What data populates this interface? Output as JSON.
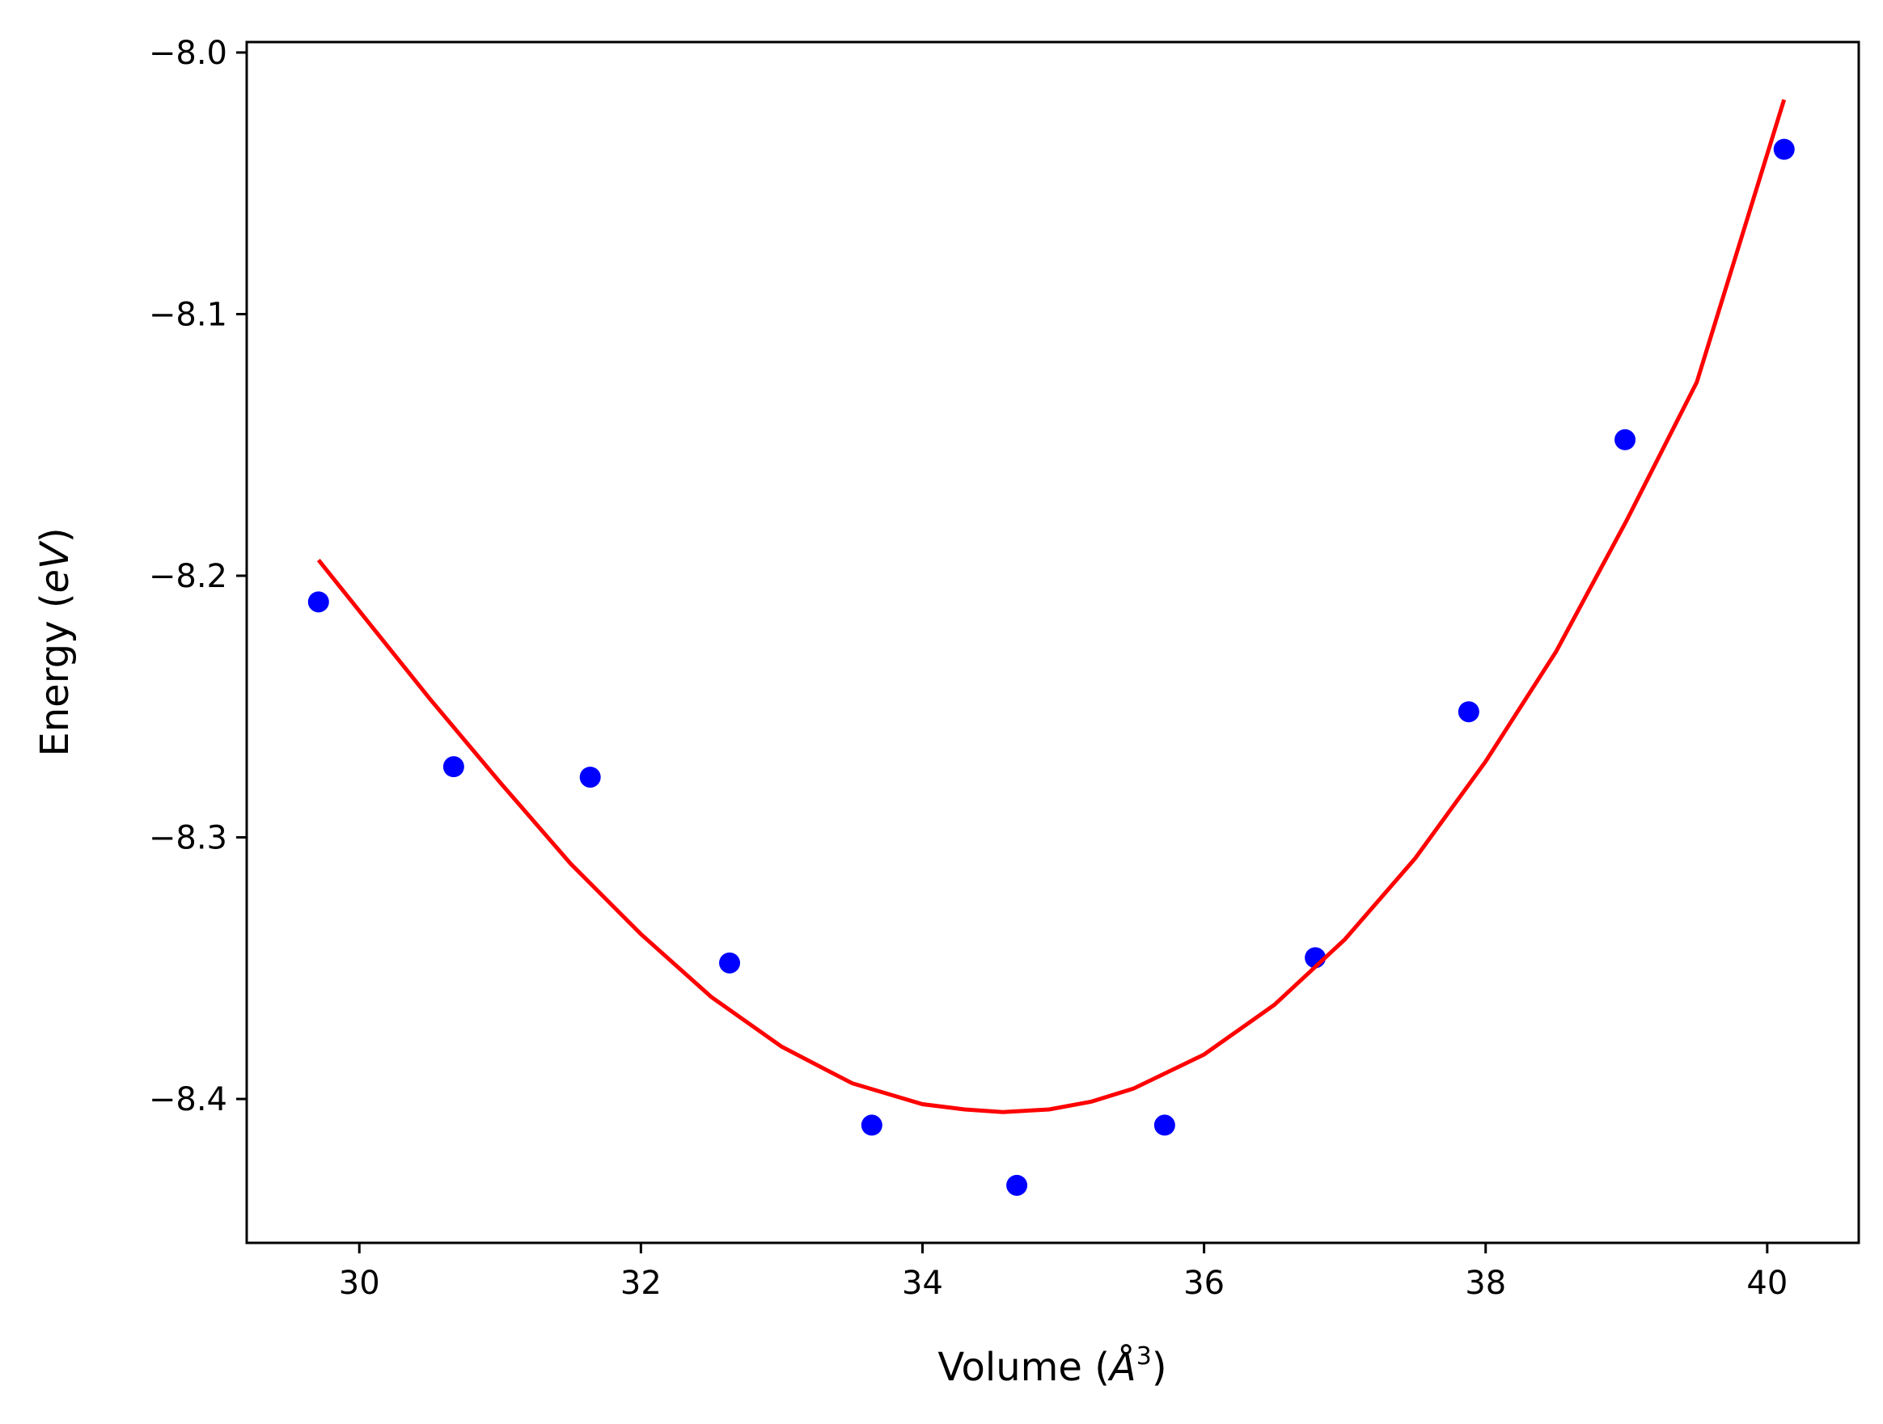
{
  "chart_data": {
    "type": "scatter",
    "title": "",
    "xlabel": "Volume (Å³)",
    "ylabel": "Energy (eV)",
    "xlabel_parts": {
      "pre": "Volume (",
      "unit": "Å",
      "sup": "3",
      "post": ")"
    },
    "ylabel_parts": {
      "pre": "Energy (",
      "unit": "eV",
      "post": ")"
    },
    "xlim": [
      29.2,
      40.65
    ],
    "ylim": [
      -8.455,
      -7.996
    ],
    "x_ticks": [
      30,
      32,
      34,
      36,
      38,
      40
    ],
    "x_tick_labels": [
      "30",
      "32",
      "34",
      "36",
      "38",
      "40"
    ],
    "y_ticks": [
      -8.4,
      -8.3,
      -8.2,
      -8.1,
      -8.0
    ],
    "y_tick_labels": [
      "−8.4",
      "−8.3",
      "−8.2",
      "−8.1",
      "−8.0"
    ],
    "grid": false,
    "legend": false,
    "series": [
      {
        "kind": "scatter",
        "color": "#0000ff",
        "x": [
          29.71,
          30.67,
          31.64,
          32.63,
          33.64,
          34.67,
          35.72,
          36.79,
          37.88,
          38.99,
          40.12
        ],
        "y": [
          -8.21,
          -8.273,
          -8.277,
          -8.348,
          -8.41,
          -8.433,
          -8.41,
          -8.346,
          -8.252,
          -8.148,
          -8.037
        ]
      },
      {
        "kind": "line",
        "color": "#ff0000",
        "x": [
          29.71,
          30.5,
          31.0,
          31.5,
          32.0,
          32.5,
          33.0,
          33.5,
          34.0,
          34.3,
          34.57,
          34.9,
          35.2,
          35.5,
          36.0,
          36.5,
          37.0,
          37.5,
          38.0,
          38.5,
          39.0,
          39.5,
          40.12
        ],
        "y": [
          -8.194,
          -8.247,
          -8.279,
          -8.31,
          -8.337,
          -8.361,
          -8.38,
          -8.394,
          -8.402,
          -8.404,
          -8.405,
          -8.404,
          -8.401,
          -8.396,
          -8.383,
          -8.364,
          -8.339,
          -8.308,
          -8.271,
          -8.229,
          -8.179,
          -8.126,
          -8.018
        ]
      }
    ]
  }
}
